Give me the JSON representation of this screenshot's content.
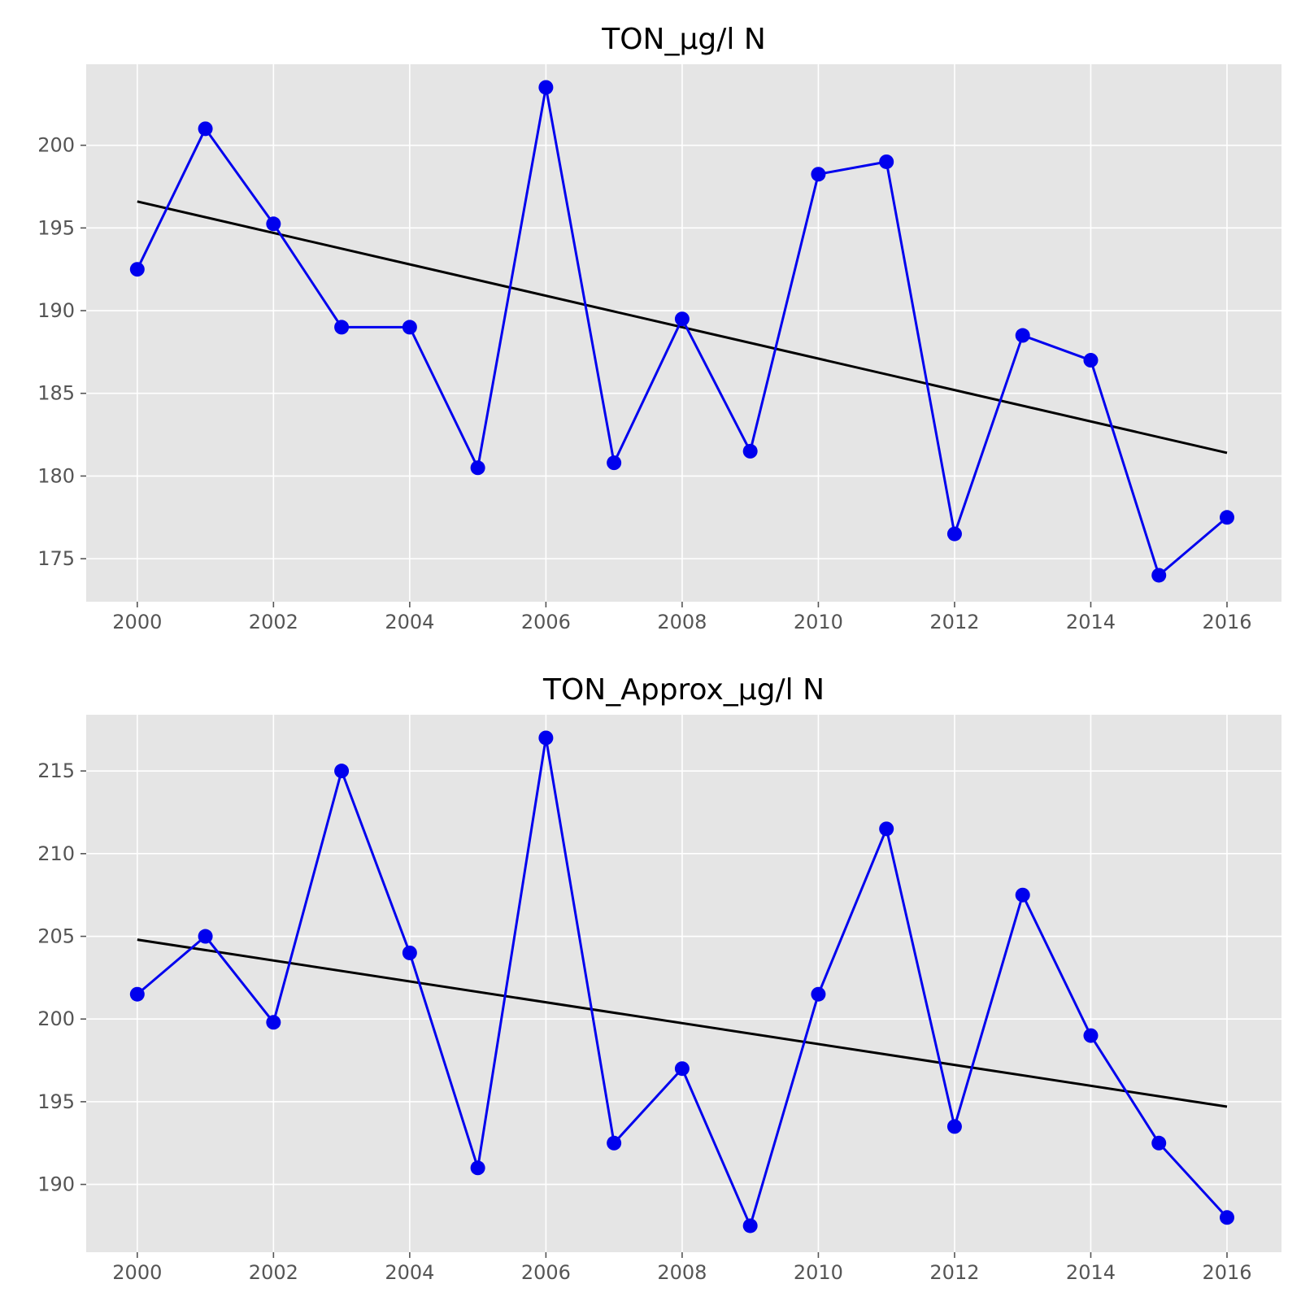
{
  "chart_data": [
    {
      "type": "line",
      "title": "TON_µg/l N",
      "xlabel": "",
      "ylabel": "",
      "grid": true,
      "xlim": [
        1999.25,
        2016.8
      ],
      "ylim": [
        172.4,
        204.9
      ],
      "x_ticks": [
        2000,
        2002,
        2004,
        2006,
        2008,
        2010,
        2012,
        2014,
        2016
      ],
      "y_ticks": [
        175,
        180,
        185,
        190,
        195,
        200
      ],
      "colors": {
        "series": "#0000ee",
        "trend": "#000000",
        "background": "#e5e5e5",
        "grid": "#ffffff"
      },
      "series": [
        {
          "x": [
            2000,
            2001,
            2002,
            2003,
            2004,
            2005,
            2006,
            2007,
            2008,
            2009,
            2010,
            2011,
            2012,
            2013,
            2014,
            2015,
            2016
          ],
          "values": [
            192.5,
            201.0,
            195.25,
            189.0,
            189.0,
            180.5,
            203.5,
            180.8,
            189.5,
            181.5,
            198.25,
            199.0,
            176.5,
            188.5,
            187.0,
            174.0,
            177.5
          ]
        },
        {
          "x": [
            2000,
            2016
          ],
          "values": [
            196.6,
            181.4
          ]
        }
      ]
    },
    {
      "type": "line",
      "title": "TON_Approx_µg/l N",
      "xlabel": "",
      "ylabel": "",
      "grid": true,
      "xlim": [
        1999.25,
        2016.8
      ],
      "ylim": [
        185.9,
        218.4
      ],
      "x_ticks": [
        2000,
        2002,
        2004,
        2006,
        2008,
        2010,
        2012,
        2014,
        2016
      ],
      "y_ticks": [
        190,
        195,
        200,
        205,
        210,
        215
      ],
      "colors": {
        "series": "#0000ee",
        "trend": "#000000",
        "background": "#e5e5e5",
        "grid": "#ffffff"
      },
      "series": [
        {
          "x": [
            2000,
            2001,
            2002,
            2003,
            2004,
            2005,
            2006,
            2007,
            2008,
            2009,
            2010,
            2011,
            2012,
            2013,
            2014,
            2015,
            2016
          ],
          "values": [
            201.5,
            205.0,
            199.8,
            215.0,
            204.0,
            191.0,
            217.0,
            192.5,
            197.0,
            187.5,
            201.5,
            211.5,
            193.5,
            207.5,
            199.0,
            192.5,
            188.0
          ]
        },
        {
          "x": [
            2000,
            2016
          ],
          "values": [
            204.8,
            194.7
          ]
        }
      ]
    }
  ]
}
